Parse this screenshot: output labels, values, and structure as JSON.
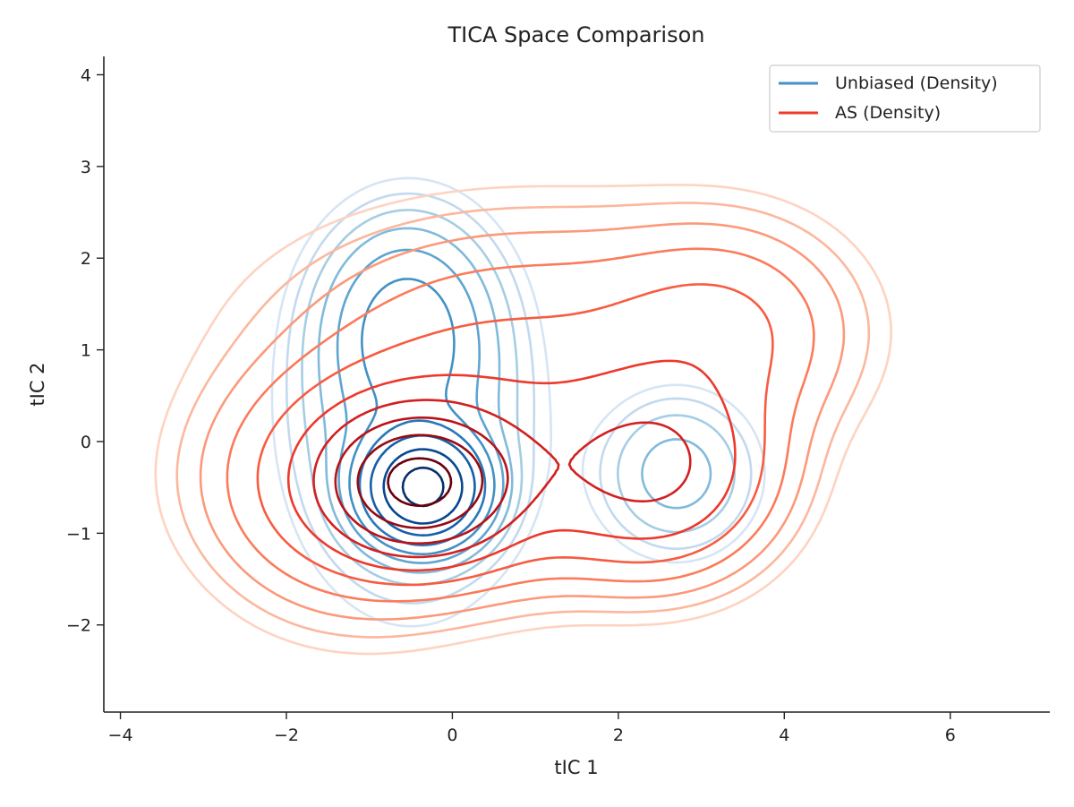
{
  "chart_data": {
    "type": "contour",
    "title": "TICA Space Comparison",
    "xlabel": "tIC 1",
    "ylabel": "tIC 2",
    "xlim": [
      -4.2,
      7.2
    ],
    "ylim": [
      -2.95,
      4.2
    ],
    "xticks": [
      -4,
      -2,
      0,
      2,
      4,
      6
    ],
    "yticks": [
      -2,
      -1,
      0,
      1,
      2,
      3,
      4
    ],
    "grid": false,
    "legend_position": "top-right",
    "levels": 10,
    "series": [
      {
        "name": "Unbiased (Density)",
        "color": "#4292c6",
        "colormap": "Blues",
        "components": [
          {
            "weight": 0.55,
            "mean": [
              -0.35,
              -0.5
            ],
            "sd": [
              0.38,
              0.32
            ]
          },
          {
            "weight": 0.3,
            "mean": [
              -0.5,
              0.3
            ],
            "sd": [
              0.75,
              1.05
            ]
          },
          {
            "weight": 0.15,
            "mean": [
              -0.55,
              1.3
            ],
            "sd": [
              0.55,
              0.6
            ]
          },
          {
            "weight": 0.06,
            "mean": [
              2.7,
              -0.35
            ],
            "sd": [
              0.55,
              0.5
            ]
          }
        ]
      },
      {
        "name": "AS (Density)",
        "color": "#ef3b2c",
        "colormap": "Reds",
        "components": [
          {
            "weight": 0.32,
            "mean": [
              -0.4,
              -0.45
            ],
            "sd": [
              0.55,
              0.38
            ]
          },
          {
            "weight": 0.26,
            "mean": [
              0.1,
              -0.3
            ],
            "sd": [
              1.35,
              0.7
            ]
          },
          {
            "weight": 0.15,
            "mean": [
              2.5,
              -0.3
            ],
            "sd": [
              0.8,
              0.65
            ]
          },
          {
            "weight": 0.13,
            "mean": [
              0.9,
              1.2
            ],
            "sd": [
              1.8,
              0.8
            ]
          },
          {
            "weight": 0.08,
            "mean": [
              -1.2,
              -0.6
            ],
            "sd": [
              1.0,
              0.8
            ]
          },
          {
            "weight": 0.06,
            "mean": [
              3.3,
              1.2
            ],
            "sd": [
              0.9,
              0.7
            ]
          }
        ]
      }
    ]
  }
}
